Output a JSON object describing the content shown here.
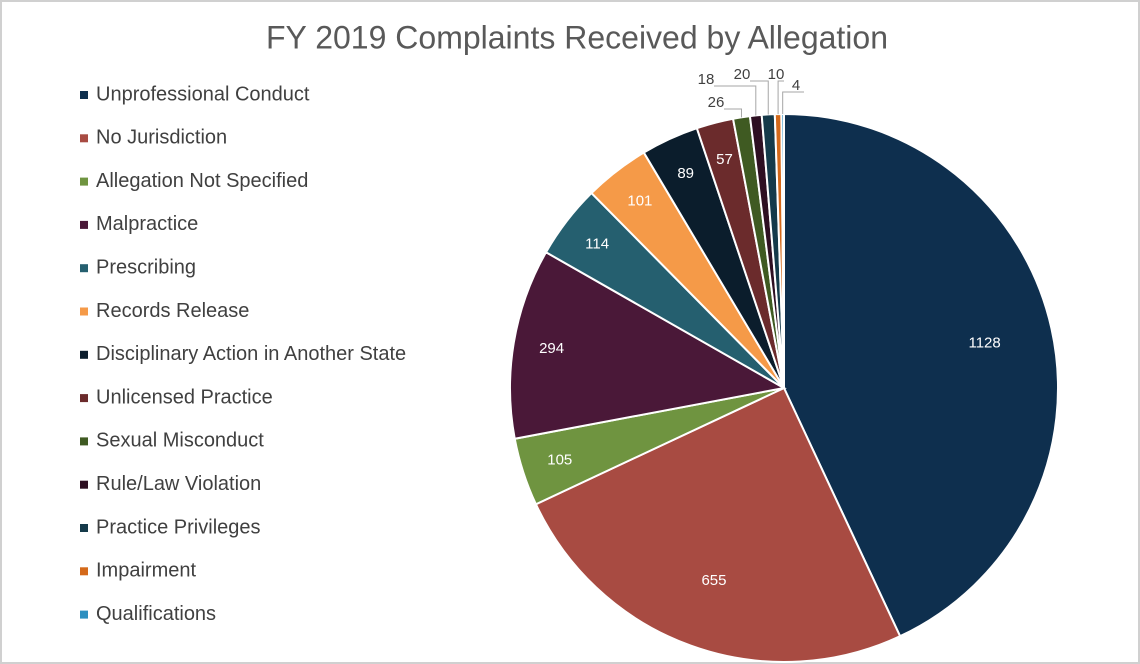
{
  "chart_data": {
    "type": "pie",
    "title": "FY 2019 Complaints Received by Allegation",
    "categories": [
      "Unprofessional Conduct",
      "No Jurisdiction",
      "Allegation Not Specified",
      "Malpractice",
      "Prescribing",
      "Records Release",
      "Disciplinary Action in Another State",
      "Unlicensed Practice",
      "Sexual Misconduct",
      "Rule/Law Violation",
      "Practice Privileges",
      "Impairment",
      "Qualifications"
    ],
    "values": [
      1128,
      655,
      105,
      294,
      114,
      101,
      89,
      57,
      26,
      18,
      20,
      10,
      4
    ],
    "colors": [
      "#0e2f4e",
      "#a84b42",
      "#6f9440",
      "#4a1838",
      "#255f6f",
      "#f59a48",
      "#0b1d2c",
      "#6b2b2c",
      "#3f5a22",
      "#2e0f22",
      "#153a4a",
      "#d4691a",
      "#2d8fc0"
    ],
    "legend": "left"
  }
}
